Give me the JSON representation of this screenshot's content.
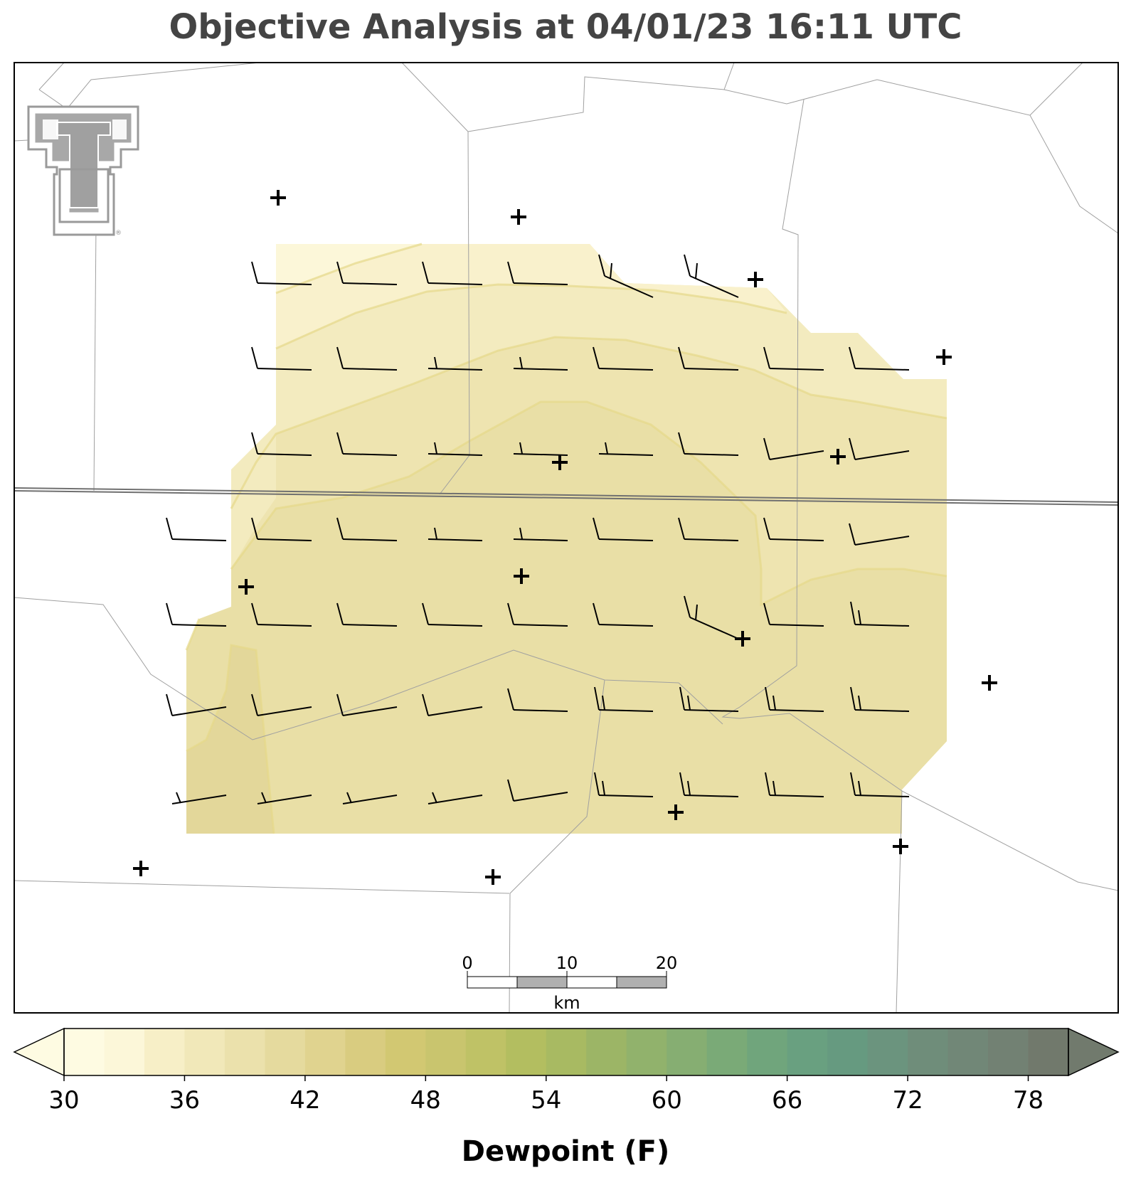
{
  "title": "Objective Analysis at 04/01/23 16:11 UTC",
  "colorbar": {
    "label": "Dewpoint (F)",
    "min": 30,
    "max": 80,
    "step": 2,
    "ticks": [
      "30",
      "36",
      "42",
      "48",
      "54",
      "60",
      "66",
      "72",
      "78"
    ],
    "colors": [
      "#fefbe2",
      "#fcf7d9",
      "#f7efc7",
      "#f1e8b9",
      "#ebe1ac",
      "#e5da9e",
      "#e0d38f",
      "#d9cc80",
      "#d2c872",
      "#c9c56e",
      "#bfc266",
      "#b3be60",
      "#a8ba62",
      "#9cb566",
      "#91b26c",
      "#86ae72",
      "#7aaa77",
      "#70a57c",
      "#69a080",
      "#669a80",
      "#6b947e",
      "#6f8d7a",
      "#718777",
      "#728173",
      "#71796c"
    ],
    "under_color": "#fefbe2",
    "over_color": "#717a6d"
  },
  "scale_bar": {
    "labels": [
      "0",
      "10",
      "20"
    ],
    "unit": "km"
  },
  "logo": {
    "name": "Texas Tech Double T"
  },
  "stations": [
    {
      "id": "s1"
    },
    {
      "id": "s2"
    },
    {
      "id": "s3"
    },
    {
      "id": "s4"
    },
    {
      "id": "s5"
    },
    {
      "id": "s6"
    },
    {
      "id": "s7"
    },
    {
      "id": "s8"
    },
    {
      "id": "s9"
    },
    {
      "id": "s10"
    },
    {
      "id": "s11"
    },
    {
      "id": "s12"
    },
    {
      "id": "s13"
    },
    {
      "id": "s14"
    },
    {
      "id": "s15"
    }
  ]
}
